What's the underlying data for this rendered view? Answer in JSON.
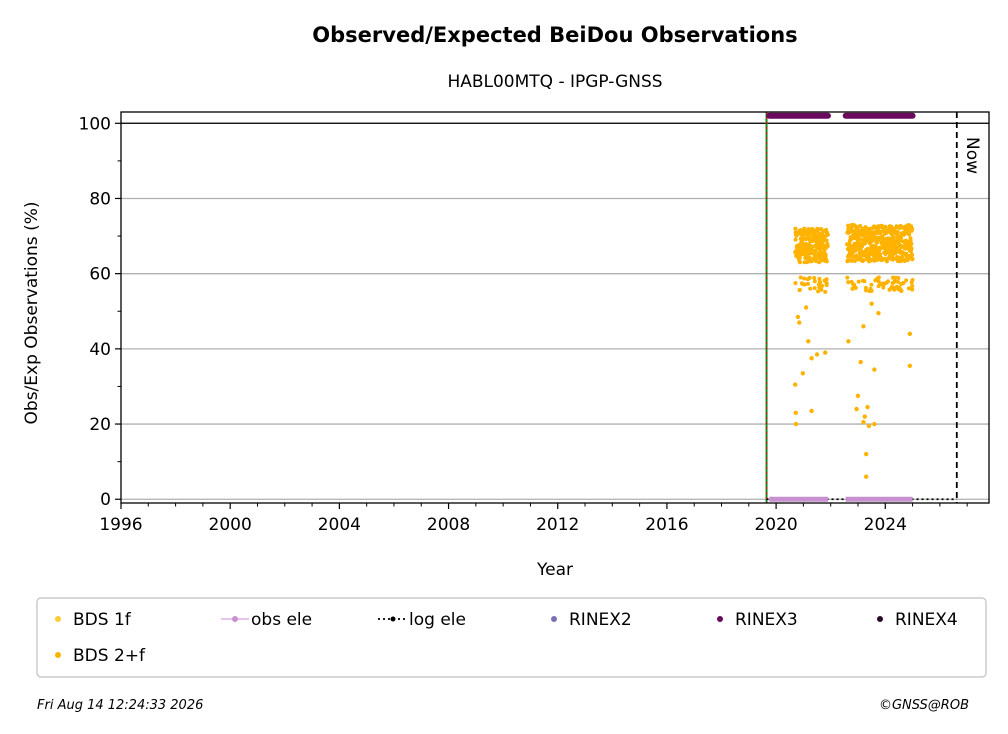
{
  "chart_data": {
    "type": "scatter",
    "title": "Observed/Expected BeiDou Observations",
    "subtitle": "HABL00MTQ - IPGP-GNSS",
    "xlabel": "Year",
    "ylabel": "Obs/Exp Observations (%)",
    "xlim": [
      1996,
      2027.8
    ],
    "ylim": [
      -1,
      103
    ],
    "xticks": [
      1996,
      2000,
      2004,
      2008,
      2012,
      2016,
      2020,
      2024
    ],
    "yticks": [
      0,
      20,
      40,
      60,
      80,
      100
    ],
    "grid": "horizontal",
    "now_label": "Now",
    "now_x": 2026.62,
    "start_line_x": 2019.65,
    "series": [
      {
        "name": "BDS 1f",
        "color": "#ffcc33",
        "values": []
      },
      {
        "name": "BDS 2+f",
        "color": "#ffb300",
        "segments": [
          {
            "x_range": [
              2020.7,
              2021.9
            ],
            "y_range": [
              60,
              72
            ]
          },
          {
            "x_range": [
              2022.6,
              2025.0
            ],
            "y_range": [
              60,
              73
            ]
          }
        ],
        "outliers": [
          [
            2020.7,
            30.5
          ],
          [
            2020.72,
            23
          ],
          [
            2020.73,
            20
          ],
          [
            2020.8,
            48.5
          ],
          [
            2020.85,
            47
          ],
          [
            2020.98,
            33.5
          ],
          [
            2021.1,
            51
          ],
          [
            2021.18,
            42
          ],
          [
            2021.3,
            23.5
          ],
          [
            2021.3,
            37.5
          ],
          [
            2021.5,
            38.5
          ],
          [
            2021.8,
            39
          ],
          [
            2022.65,
            42
          ],
          [
            2022.8,
            56
          ],
          [
            2022.95,
            24
          ],
          [
            2023.0,
            27.5
          ],
          [
            2023.1,
            36.5
          ],
          [
            2023.2,
            46
          ],
          [
            2023.2,
            20.5
          ],
          [
            2023.25,
            22
          ],
          [
            2023.3,
            12
          ],
          [
            2023.3,
            6
          ],
          [
            2023.35,
            24.5
          ],
          [
            2023.4,
            19.5
          ],
          [
            2023.5,
            52
          ],
          [
            2023.6,
            34.5
          ],
          [
            2023.6,
            20
          ],
          [
            2023.75,
            49.5
          ],
          [
            2024.9,
            44
          ],
          [
            2024.9,
            35.5
          ]
        ]
      },
      {
        "name": "obs ele",
        "color": "#c88fd1",
        "segments": [
          {
            "x_range": [
              2019.75,
              2021.9
            ],
            "y": 0
          },
          {
            "x_range": [
              2022.55,
              2025.0
            ],
            "y": 0
          }
        ]
      },
      {
        "name": "log ele",
        "color": "#000000",
        "segments": [
          {
            "x_range": [
              2019.65,
              2026.62
            ],
            "y": 0
          }
        ]
      },
      {
        "name": "RINEX2",
        "color": "#7b6fb8",
        "values": []
      },
      {
        "name": "RINEX3",
        "color": "#6a0a5c",
        "segments": [
          {
            "x_range": [
              2019.75,
              2021.9
            ],
            "y": 102
          },
          {
            "x_range": [
              2022.55,
              2025.0
            ],
            "y": 102
          }
        ]
      },
      {
        "name": "RINEX4",
        "color": "#2a0a2a",
        "values": []
      }
    ],
    "legend_position": "below"
  },
  "footer": {
    "timestamp": "Fri Aug 14 12:24:33 2026",
    "credit": "©GNSS@ROB"
  }
}
